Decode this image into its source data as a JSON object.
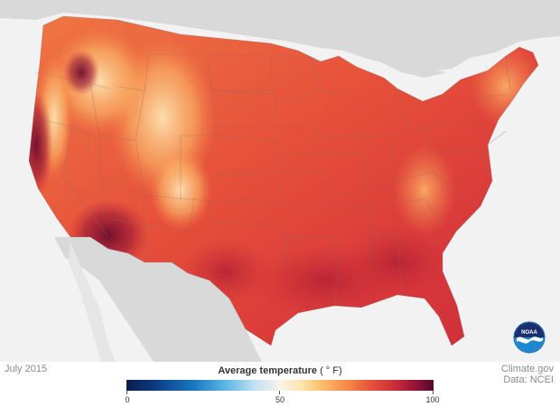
{
  "map": {
    "date": "July 2015",
    "source_line1": "Climate.gov",
    "source_line2": "Data: NCEI",
    "logo_text": "NOAA"
  },
  "legend": {
    "title_main": "Average temperature",
    "title_unit": "( ° F)",
    "ticks": [
      "0",
      "50",
      "100"
    ],
    "tick_values": [
      0,
      50,
      100
    ],
    "range": [
      0,
      100
    ]
  },
  "colors": {
    "land_warm": "#e8553c",
    "land_hot": "#b01e35",
    "land_hottest": "#6a0d2e",
    "land_cool": "#f8a35c",
    "land_coolest": "#fde3b0",
    "background_land": "#d9d9d9",
    "water": "#f2f2f2",
    "noaa_blue": "#0b5fa8"
  }
}
